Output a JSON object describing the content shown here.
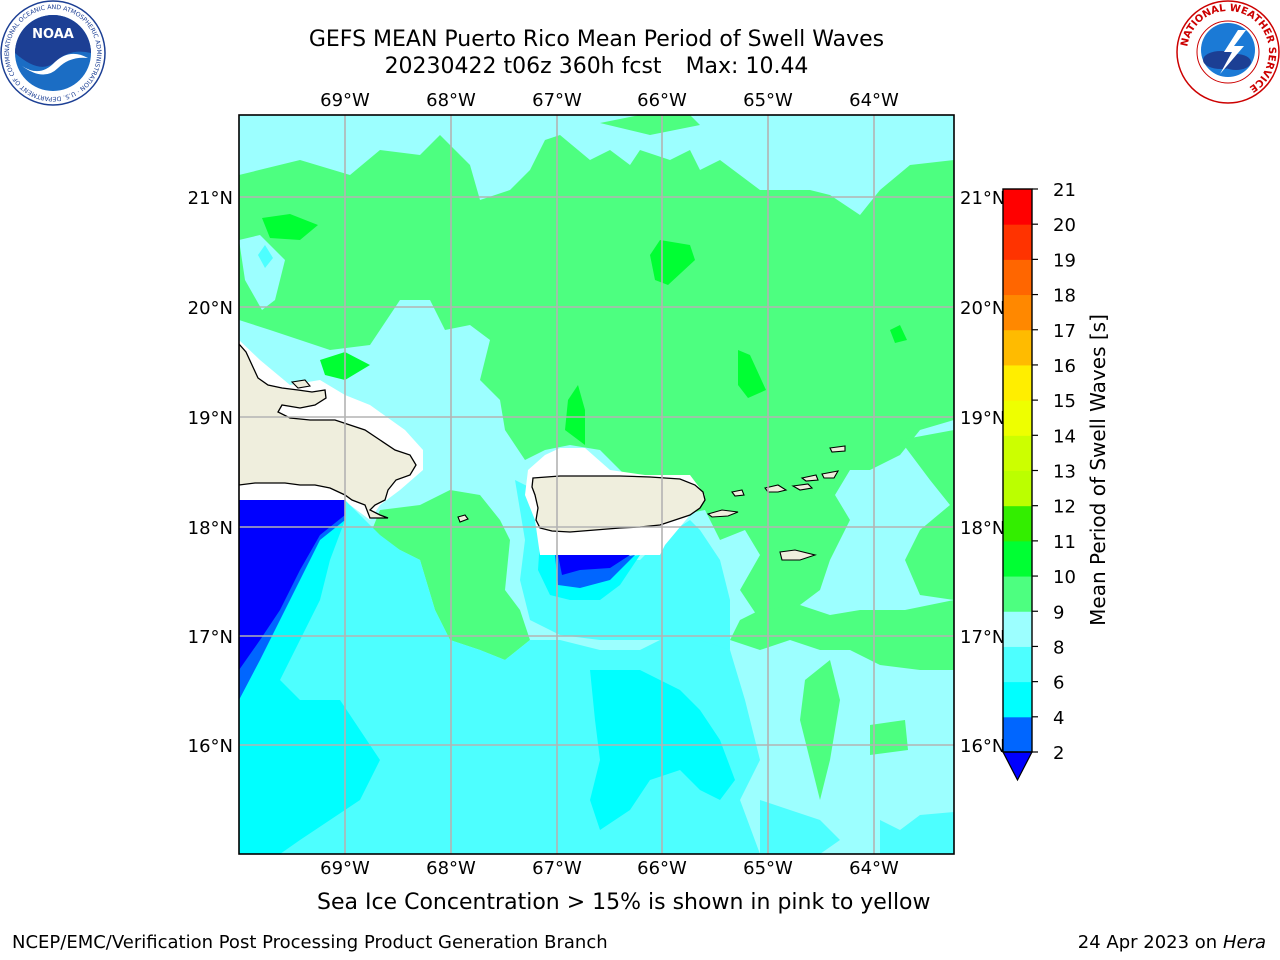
{
  "title": {
    "line1": "GEFS MEAN Puerto Rico Mean Period of Swell Waves",
    "run": "20230422 t06z 360h fcst",
    "max": "Max: 10.44"
  },
  "map": {
    "lon_ticks": [
      "69°W",
      "68°W",
      "67°W",
      "66°W",
      "65°W",
      "64°W"
    ],
    "lat_ticks": [
      "21°N",
      "20°N",
      "19°N",
      "18°N",
      "17°N",
      "16°N"
    ]
  },
  "colorbar": {
    "label": "Mean Period of Swell Waves [s]",
    "ticks": [
      "2",
      "4",
      "6",
      "8",
      "9",
      "10",
      "11",
      "12",
      "13",
      "14",
      "15",
      "16",
      "17",
      "18",
      "19",
      "20",
      "21"
    ],
    "colors": {
      "below2": "#0000ff",
      "2-4": "#0066ff",
      "4-6": "#00ffff",
      "6-8": "#4dffff",
      "8-9": "#9cffff",
      "9-10": "#4dff80",
      "10-11": "#00ff33",
      "11-12": "#33ee00",
      "12-13": "#bbff00",
      "13-14": "#ccff00",
      "14-15": "#eeff00",
      "15-16": "#ffee00",
      "16-17": "#ffbb00",
      "17-18": "#ff8800",
      "18-19": "#ff6600",
      "19-20": "#ff3300",
      "20-21": "#ff0000"
    }
  },
  "caption": "Sea Ice Concentration > 15% is shown in pink to yellow",
  "footer": {
    "left": "NCEP/EMC/Verification Post Processing Product Generation Branch",
    "date": "24 Apr 2023 on",
    "host": "Hera"
  },
  "logos": {
    "noaa": "NOAA",
    "noaa_ring": "NATIONAL OCEANIC AND ATMOSPHERIC ADMINISTRATION · U.S. DEPARTMENT OF COMMERCE",
    "nws_ring": "NATIONAL WEATHER SERVICE"
  }
}
